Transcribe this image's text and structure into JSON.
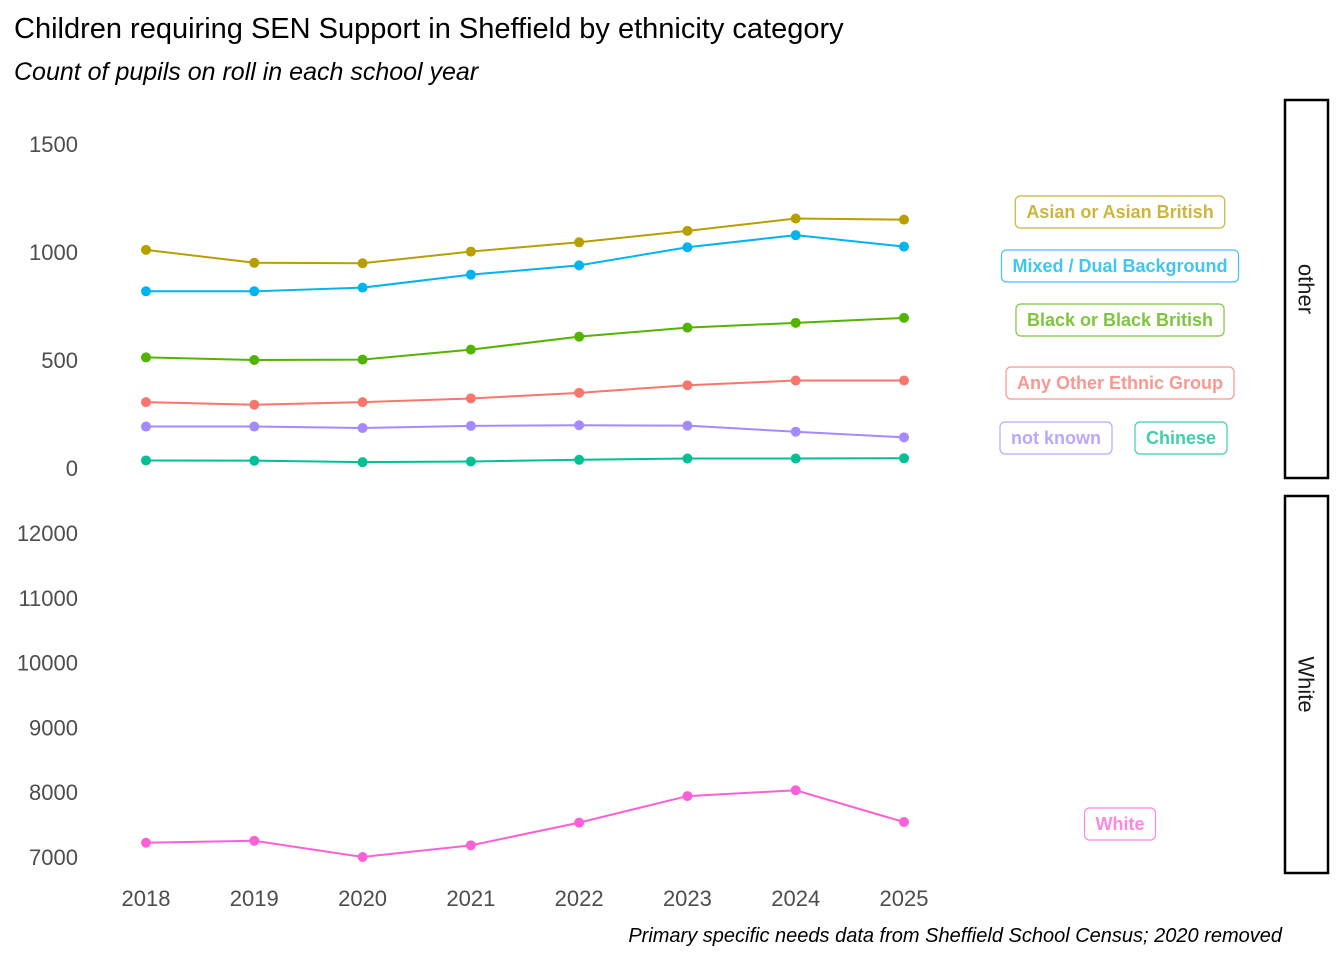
{
  "chart_data": {
    "type": "line",
    "title": "Children requiring SEN Support in Sheffield by ethnicity category",
    "subtitle": "Count of pupils on roll in each school year",
    "caption": "Primary specific needs data from Sheffield School Census; 2020 removed",
    "xlabel": "",
    "ylabel": "",
    "x": [
      "2018",
      "2019",
      "2020",
      "2021",
      "2022",
      "2023",
      "2024",
      "2025"
    ],
    "legend": "direct labels",
    "grid": false,
    "panels": [
      {
        "name": "other",
        "ylim": [
          0,
          1500
        ],
        "yticks": [
          "0",
          "500",
          "1000",
          "1500"
        ],
        "series": [
          {
            "name": "Asian or Asian British",
            "color": "#B79F00",
            "label_color": "#CCB53F",
            "values": [
              1010,
              950,
              948,
              1002,
              1045,
              1098,
              1155,
              1150
            ]
          },
          {
            "name": "Mixed / Dual Background",
            "color": "#00B4EF",
            "label_color": "#3FC6F3",
            "values": [
              818,
              818,
              835,
              895,
              938,
              1022,
              1078,
              1025
            ]
          },
          {
            "name": "Black or Black British",
            "color": "#53B400",
            "label_color": "#7EC63F",
            "values": [
              512,
              500,
              502,
              548,
              608,
              650,
              672,
              695
            ]
          },
          {
            "name": "Any Other Ethnic Group",
            "color": "#F8766D",
            "label_color": "#F99891",
            "values": [
              305,
              293,
              305,
              322,
              348,
              383,
              405,
              405
            ]
          },
          {
            "name": "not known",
            "color": "#A58AFF",
            "label_color": "#BBA7FF",
            "values": [
              192,
              192,
              185,
              195,
              198,
              196,
              168,
              142
            ]
          },
          {
            "name": "Chinese",
            "color": "#00C094",
            "label_color": "#3FCFAE",
            "values": [
              35,
              34,
              27,
              30,
              38,
              44,
              44,
              45
            ]
          }
        ]
      },
      {
        "name": "White",
        "ylim": [
          7000,
          12000
        ],
        "yticks": [
          "7000",
          "8000",
          "9000",
          "10000",
          "11000",
          "12000"
        ],
        "series": [
          {
            "name": "White",
            "color": "#FB61D7",
            "label_color": "#FC88E0",
            "values": [
              7220,
              7250,
              7000,
              7180,
              7530,
              7940,
              8030,
              7540
            ]
          }
        ]
      }
    ]
  }
}
